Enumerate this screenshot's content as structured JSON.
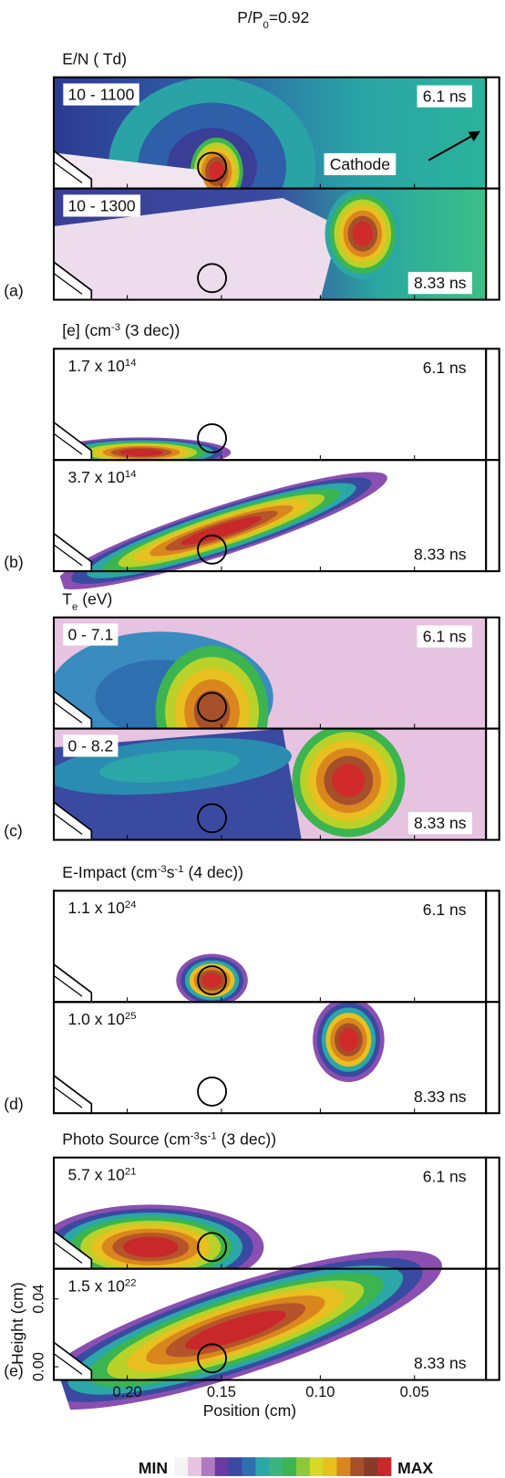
{
  "title": [
    {
      "t": "P/P"
    },
    {
      "t": "0",
      "sub": true
    },
    {
      "t": "=0.92"
    }
  ],
  "panels": [
    {
      "label": "(a)",
      "heading": [
        {
          "t": "E/N ( Td)"
        }
      ],
      "plots": [
        {
          "range": [
            {
              "t": "10 - 1100"
            }
          ],
          "time": "6.1 ns"
        },
        {
          "range": [
            {
              "t": "10 - 1300"
            }
          ],
          "time": "8.33 ns"
        }
      ]
    },
    {
      "label": "(b)",
      "heading": [
        {
          "t": "[e]  (cm"
        },
        {
          "t": "-3",
          "sup": true
        },
        {
          "t": " (3 dec))"
        }
      ],
      "plots": [
        {
          "range": [
            {
              "t": "1.7 x 10"
            },
            {
              "t": "14",
              "sup": true
            }
          ],
          "time": "6.1 ns"
        },
        {
          "range": [
            {
              "t": "3.7 x 10"
            },
            {
              "t": "14",
              "sup": true
            }
          ],
          "time": "8.33 ns"
        }
      ]
    },
    {
      "label": "(c)",
      "heading": [
        {
          "t": "T"
        },
        {
          "t": "e",
          "sub": true
        },
        {
          "t": " (eV)"
        }
      ],
      "plots": [
        {
          "range": [
            {
              "t": "0 - 7.1"
            }
          ],
          "time": "6.1 ns"
        },
        {
          "range": [
            {
              "t": "0 - 8.2"
            }
          ],
          "time": "8.33 ns"
        }
      ]
    },
    {
      "label": "(d)",
      "heading": [
        {
          "t": "E-Impact  (cm"
        },
        {
          "t": "-3",
          "sup": true
        },
        {
          "t": "s"
        },
        {
          "t": "-1",
          "sup": true
        },
        {
          "t": " (4 dec))"
        }
      ],
      "plots": [
        {
          "range": [
            {
              "t": "1.1 x 10"
            },
            {
              "t": "24",
              "sup": true
            }
          ],
          "time": "6.1 ns"
        },
        {
          "range": [
            {
              "t": "1.0 x 10"
            },
            {
              "t": "25",
              "sup": true
            }
          ],
          "time": "8.33 ns"
        }
      ]
    },
    {
      "label": "(e)",
      "heading": [
        {
          "t": "Photo Source (cm"
        },
        {
          "t": "-3",
          "sup": true
        },
        {
          "t": "s"
        },
        {
          "t": "-1",
          "sup": true
        },
        {
          "t": " (3 dec))"
        }
      ],
      "plots": [
        {
          "range": [
            {
              "t": "5.7 x 10"
            },
            {
              "t": "21",
              "sup": true
            }
          ],
          "time": "6.1 ns"
        },
        {
          "range": [
            {
              "t": "1.5 x 10"
            },
            {
              "t": "22",
              "sup": true
            }
          ],
          "time": "8.33 ns"
        }
      ]
    }
  ],
  "annotation": "Cathode",
  "axes": {
    "x_label": "Position (cm)",
    "y_label": "Height (cm)",
    "x_ticks": [
      "0.20",
      "0.15",
      "0.10",
      "0.05"
    ],
    "y_ticks": [
      "0.00",
      "0.04"
    ]
  },
  "colorbar": {
    "min": "MIN",
    "max": "MAX"
  }
}
